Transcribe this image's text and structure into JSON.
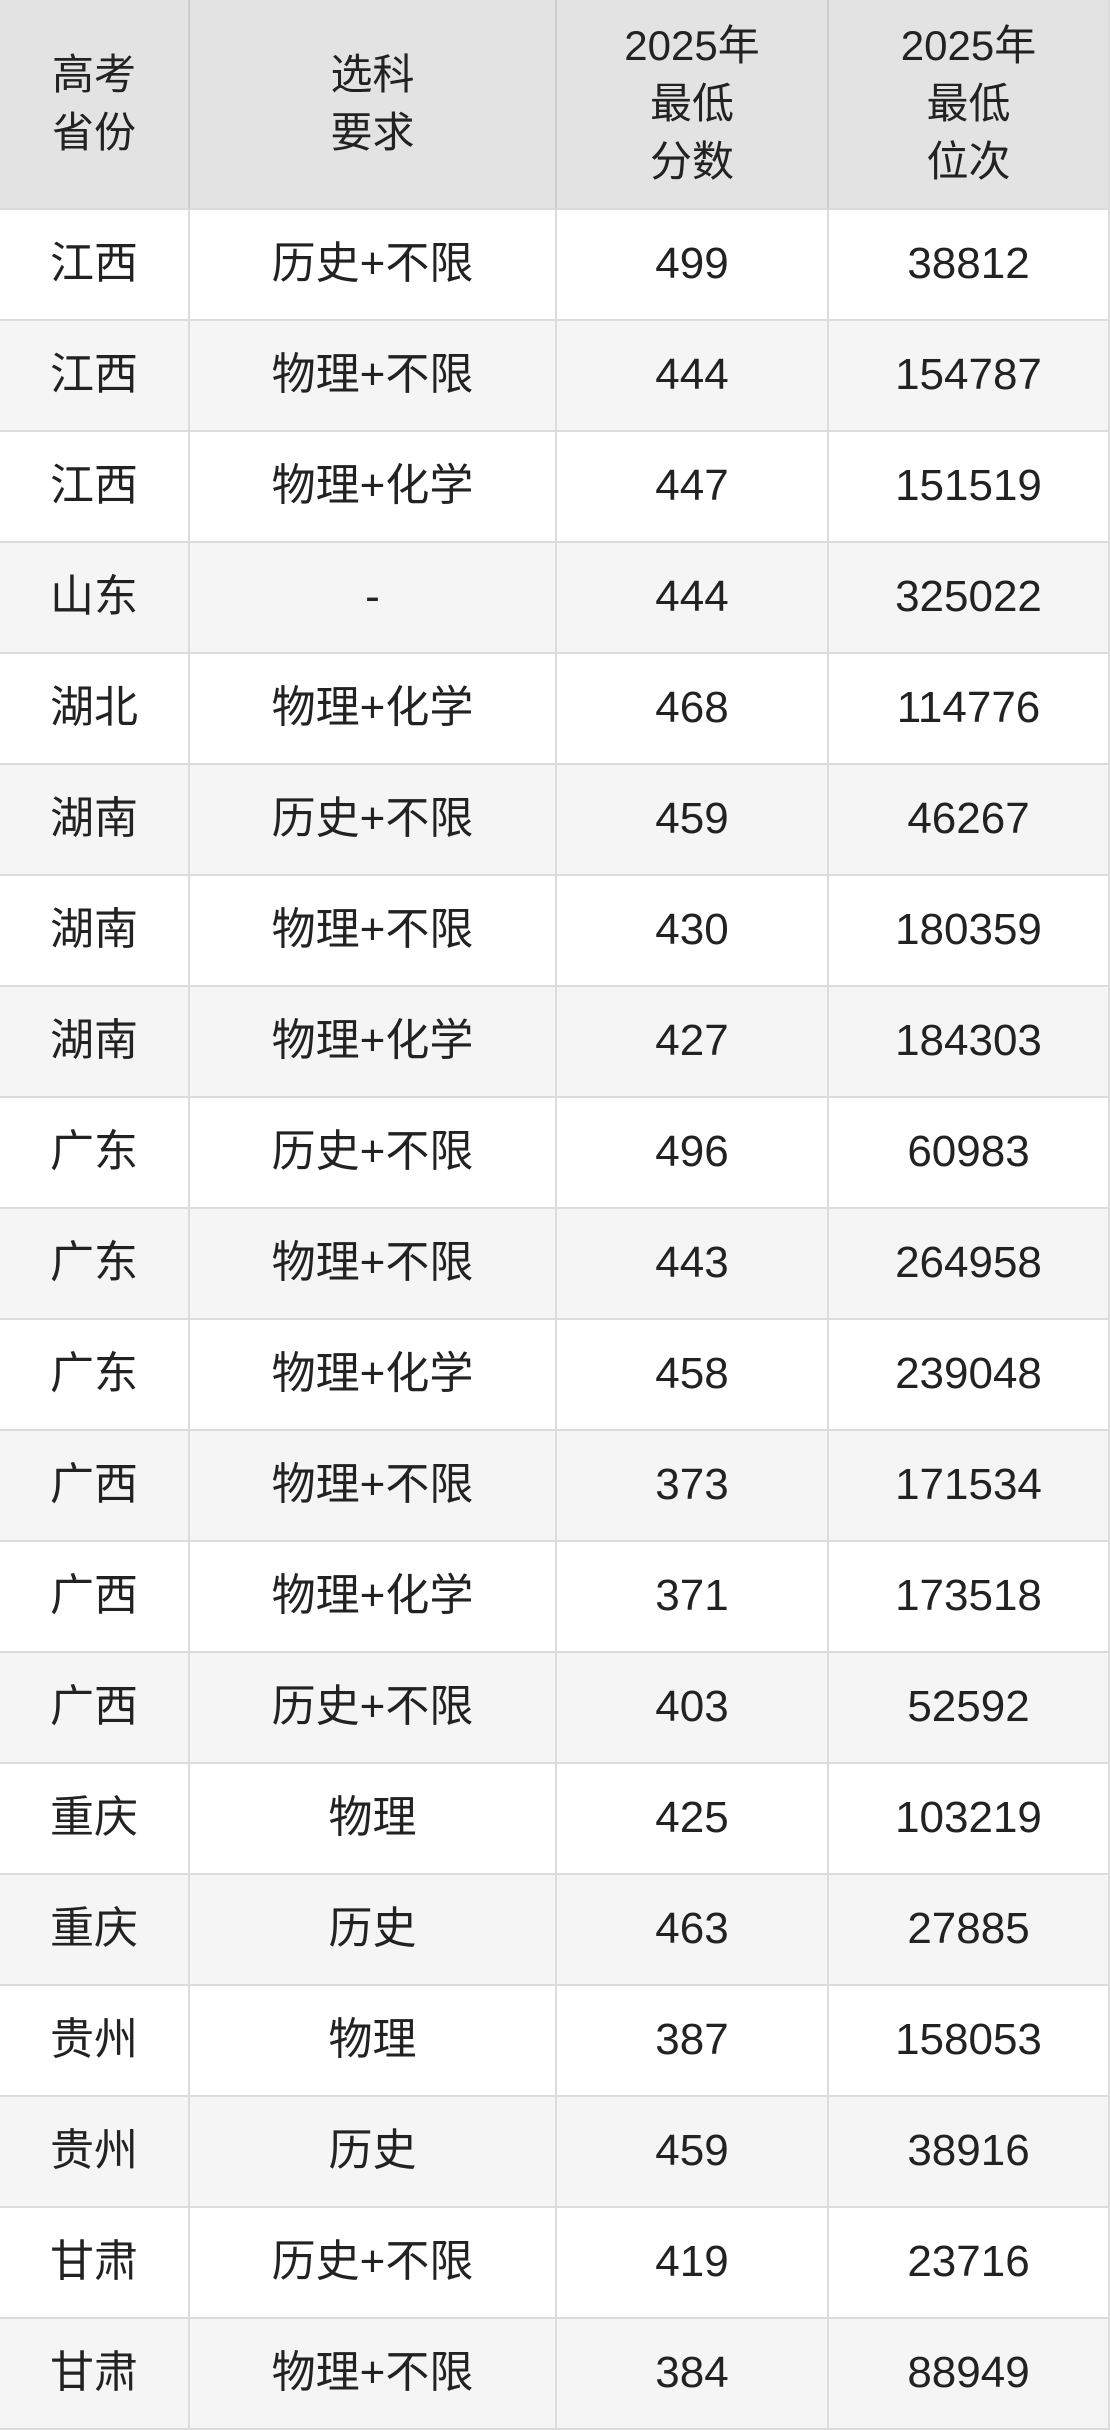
{
  "table": {
    "header": {
      "province": "高考\n省份",
      "requirement": "选科\n要求",
      "score": "2025年\n最低\n分数",
      "rank": "2025年\n最低\n位次"
    }
  },
  "colors": {
    "header_bg": "#e3e3e3",
    "row_bg": "#ffffff",
    "row_alt_bg": "#f5f5f5",
    "border": "#dcdcdc",
    "header_border": "#cdcdcd",
    "text": "#222222"
  },
  "chart_data": {
    "type": "table",
    "columns": [
      "高考省份",
      "选科要求",
      "2025年最低分数",
      "2025年最低位次"
    ],
    "rows": [
      [
        "江西",
        "历史+不限",
        499,
        38812
      ],
      [
        "江西",
        "物理+不限",
        444,
        154787
      ],
      [
        "江西",
        "物理+化学",
        447,
        151519
      ],
      [
        "山东",
        "-",
        444,
        325022
      ],
      [
        "湖北",
        "物理+化学",
        468,
        114776
      ],
      [
        "湖南",
        "历史+不限",
        459,
        46267
      ],
      [
        "湖南",
        "物理+不限",
        430,
        180359
      ],
      [
        "湖南",
        "物理+化学",
        427,
        184303
      ],
      [
        "广东",
        "历史+不限",
        496,
        60983
      ],
      [
        "广东",
        "物理+不限",
        443,
        264958
      ],
      [
        "广东",
        "物理+化学",
        458,
        239048
      ],
      [
        "广西",
        "物理+不限",
        373,
        171534
      ],
      [
        "广西",
        "物理+化学",
        371,
        173518
      ],
      [
        "广西",
        "历史+不限",
        403,
        52592
      ],
      [
        "重庆",
        "物理",
        425,
        103219
      ],
      [
        "重庆",
        "历史",
        463,
        27885
      ],
      [
        "贵州",
        "物理",
        387,
        158053
      ],
      [
        "贵州",
        "历史",
        459,
        38916
      ],
      [
        "甘肃",
        "历史+不限",
        419,
        23716
      ],
      [
        "甘肃",
        "物理+不限",
        384,
        88949
      ]
    ]
  }
}
